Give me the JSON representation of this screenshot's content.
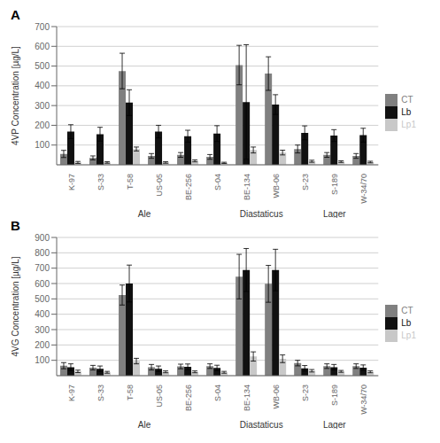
{
  "chart_data": [
    {
      "type": "bar",
      "title": "A",
      "ylabel": "4VP Concentration [µg/L]",
      "categories": [
        "K-97",
        "S-33",
        "T-58",
        "US-05",
        "BE-256",
        "S-04",
        "BE-134",
        "WB-06",
        "S-23",
        "S-189",
        "W-34/70"
      ],
      "series": [
        {
          "name": "CT",
          "color": "#808080",
          "values": [
            55,
            35,
            475,
            45,
            50,
            40,
            505,
            462,
            80,
            50,
            45
          ],
          "errors": [
            18,
            10,
            90,
            12,
            12,
            12,
            100,
            85,
            20,
            12,
            12
          ]
        },
        {
          "name": "Lb",
          "color": "#111111",
          "values": [
            168,
            155,
            315,
            168,
            145,
            158,
            318,
            305,
            162,
            148,
            150
          ],
          "errors": [
            35,
            35,
            65,
            32,
            30,
            40,
            290,
            50,
            35,
            30,
            35
          ]
        },
        {
          "name": "Lp1",
          "color": "#c8c8c8",
          "values": [
            12,
            12,
            80,
            12,
            20,
            10,
            75,
            62,
            18,
            16,
            14
          ],
          "errors": [
            5,
            4,
            10,
            4,
            5,
            3,
            15,
            12,
            5,
            4,
            4
          ]
        }
      ],
      "ylim": [
        0,
        700
      ],
      "yticks": [
        100,
        200,
        300,
        400,
        500,
        600,
        700
      ],
      "grid": true,
      "legend": "right",
      "groups": [
        {
          "name": "Ale",
          "categories": [
            "K-97",
            "S-33",
            "T-58",
            "US-05",
            "BE-256",
            "S-04"
          ]
        },
        {
          "name": "Diastaticus",
          "categories": [
            "BE-134",
            "WB-06"
          ]
        },
        {
          "name": "Lager",
          "categories": [
            "S-23",
            "S-189",
            "W-34/70"
          ]
        }
      ]
    },
    {
      "type": "bar",
      "title": "B",
      "ylabel": "4VG Concentration [µg/L]",
      "categories": [
        "K-97",
        "S-33",
        "T-58",
        "US-05",
        "BE-256",
        "S-04",
        "BE-134",
        "WB-06",
        "S-23",
        "S-189",
        "W-34/70"
      ],
      "series": [
        {
          "name": "CT",
          "color": "#808080",
          "values": [
            65,
            52,
            525,
            55,
            60,
            62,
            645,
            598,
            82,
            62,
            62
          ],
          "errors": [
            20,
            15,
            65,
            18,
            15,
            15,
            145,
            120,
            18,
            15,
            15
          ]
        },
        {
          "name": "Lb",
          "color": "#111111",
          "values": [
            55,
            45,
            600,
            45,
            58,
            50,
            688,
            688,
            48,
            55,
            52
          ],
          "errors": [
            22,
            18,
            120,
            18,
            18,
            18,
            140,
            135,
            18,
            18,
            18
          ]
        },
        {
          "name": "Lp1",
          "color": "#c8c8c8",
          "values": [
            28,
            22,
            95,
            25,
            25,
            22,
            125,
            110,
            32,
            28,
            25
          ],
          "errors": [
            8,
            6,
            18,
            6,
            6,
            6,
            30,
            25,
            8,
            6,
            6
          ]
        }
      ],
      "ylim": [
        0,
        900
      ],
      "yticks": [
        100,
        200,
        300,
        400,
        500,
        600,
        700,
        800,
        900
      ],
      "grid": true,
      "legend": "right",
      "groups": [
        {
          "name": "Ale",
          "categories": [
            "K-97",
            "S-33",
            "T-58",
            "US-05",
            "BE-256",
            "S-04"
          ]
        },
        {
          "name": "Diastaticus",
          "categories": [
            "BE-134",
            "WB-06"
          ]
        },
        {
          "name": "Lager",
          "categories": [
            "S-23",
            "S-189",
            "W-34/70"
          ]
        }
      ]
    }
  ]
}
